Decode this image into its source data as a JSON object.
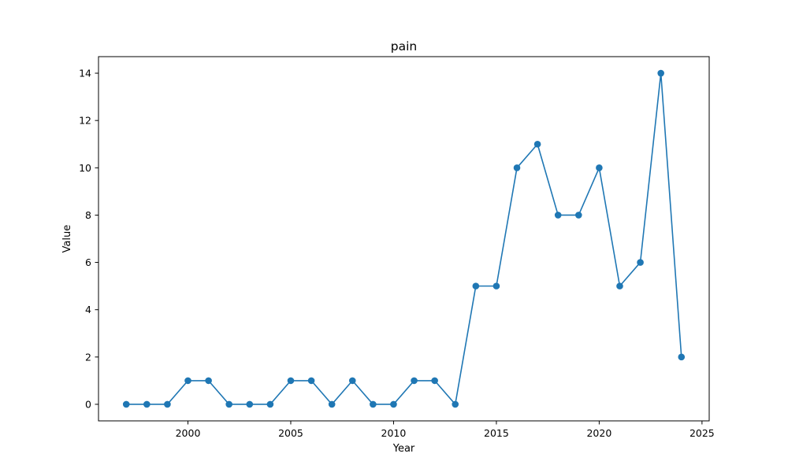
{
  "chart_data": {
    "type": "line",
    "title": "pain",
    "xlabel": "Year",
    "ylabel": "Value",
    "xlim": [
      1995.65,
      2025.35
    ],
    "ylim": [
      -0.7,
      14.7
    ],
    "x_ticks": [
      2000,
      2005,
      2010,
      2015,
      2020,
      2025
    ],
    "y_ticks": [
      0,
      2,
      4,
      6,
      8,
      10,
      12,
      14
    ],
    "grid": false,
    "series": [
      {
        "color": "#1f77b4",
        "marker": "circle",
        "x": [
          1997,
          1998,
          1999,
          2000,
          2001,
          2002,
          2003,
          2004,
          2005,
          2006,
          2007,
          2008,
          2009,
          2010,
          2011,
          2012,
          2013,
          2014,
          2015,
          2016,
          2017,
          2018,
          2019,
          2020,
          2021,
          2022,
          2023,
          2024
        ],
        "values": [
          0,
          0,
          0,
          1,
          1,
          0,
          0,
          0,
          1,
          1,
          0,
          1,
          0,
          0,
          1,
          1,
          0,
          5,
          5,
          10,
          11,
          8,
          8,
          10,
          5,
          6,
          14,
          2
        ]
      }
    ]
  }
}
